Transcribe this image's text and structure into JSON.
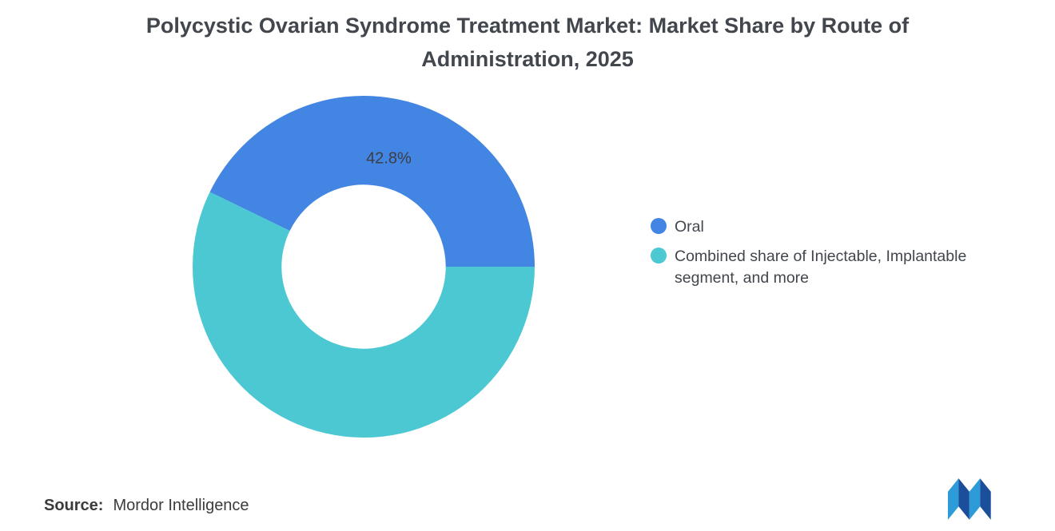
{
  "chart_data": {
    "type": "pie",
    "donut": true,
    "title": "Polycystic Ovarian Syndrome Treatment Market: Market Share by Route of Administration, 2025",
    "inner_radius_ratio": 0.48,
    "start_angle_deg": 0,
    "direction": "counterclockwise",
    "legend_position": "right",
    "slices": [
      {
        "label": "Oral",
        "value": 42.8,
        "color": "#4285e2",
        "data_label": "42.8%"
      },
      {
        "label": "Combined share of Injectable, Implantable segment, and more",
        "value": 57.2,
        "color": "#4cc8d3",
        "data_label": ""
      }
    ]
  },
  "footer": {
    "source_label": "Source:",
    "source_value": "Mordor Intelligence"
  },
  "logo": {
    "name": "mordor-intelligence-logo",
    "colors": [
      "#2d9bd8",
      "#1b4e9b"
    ]
  }
}
